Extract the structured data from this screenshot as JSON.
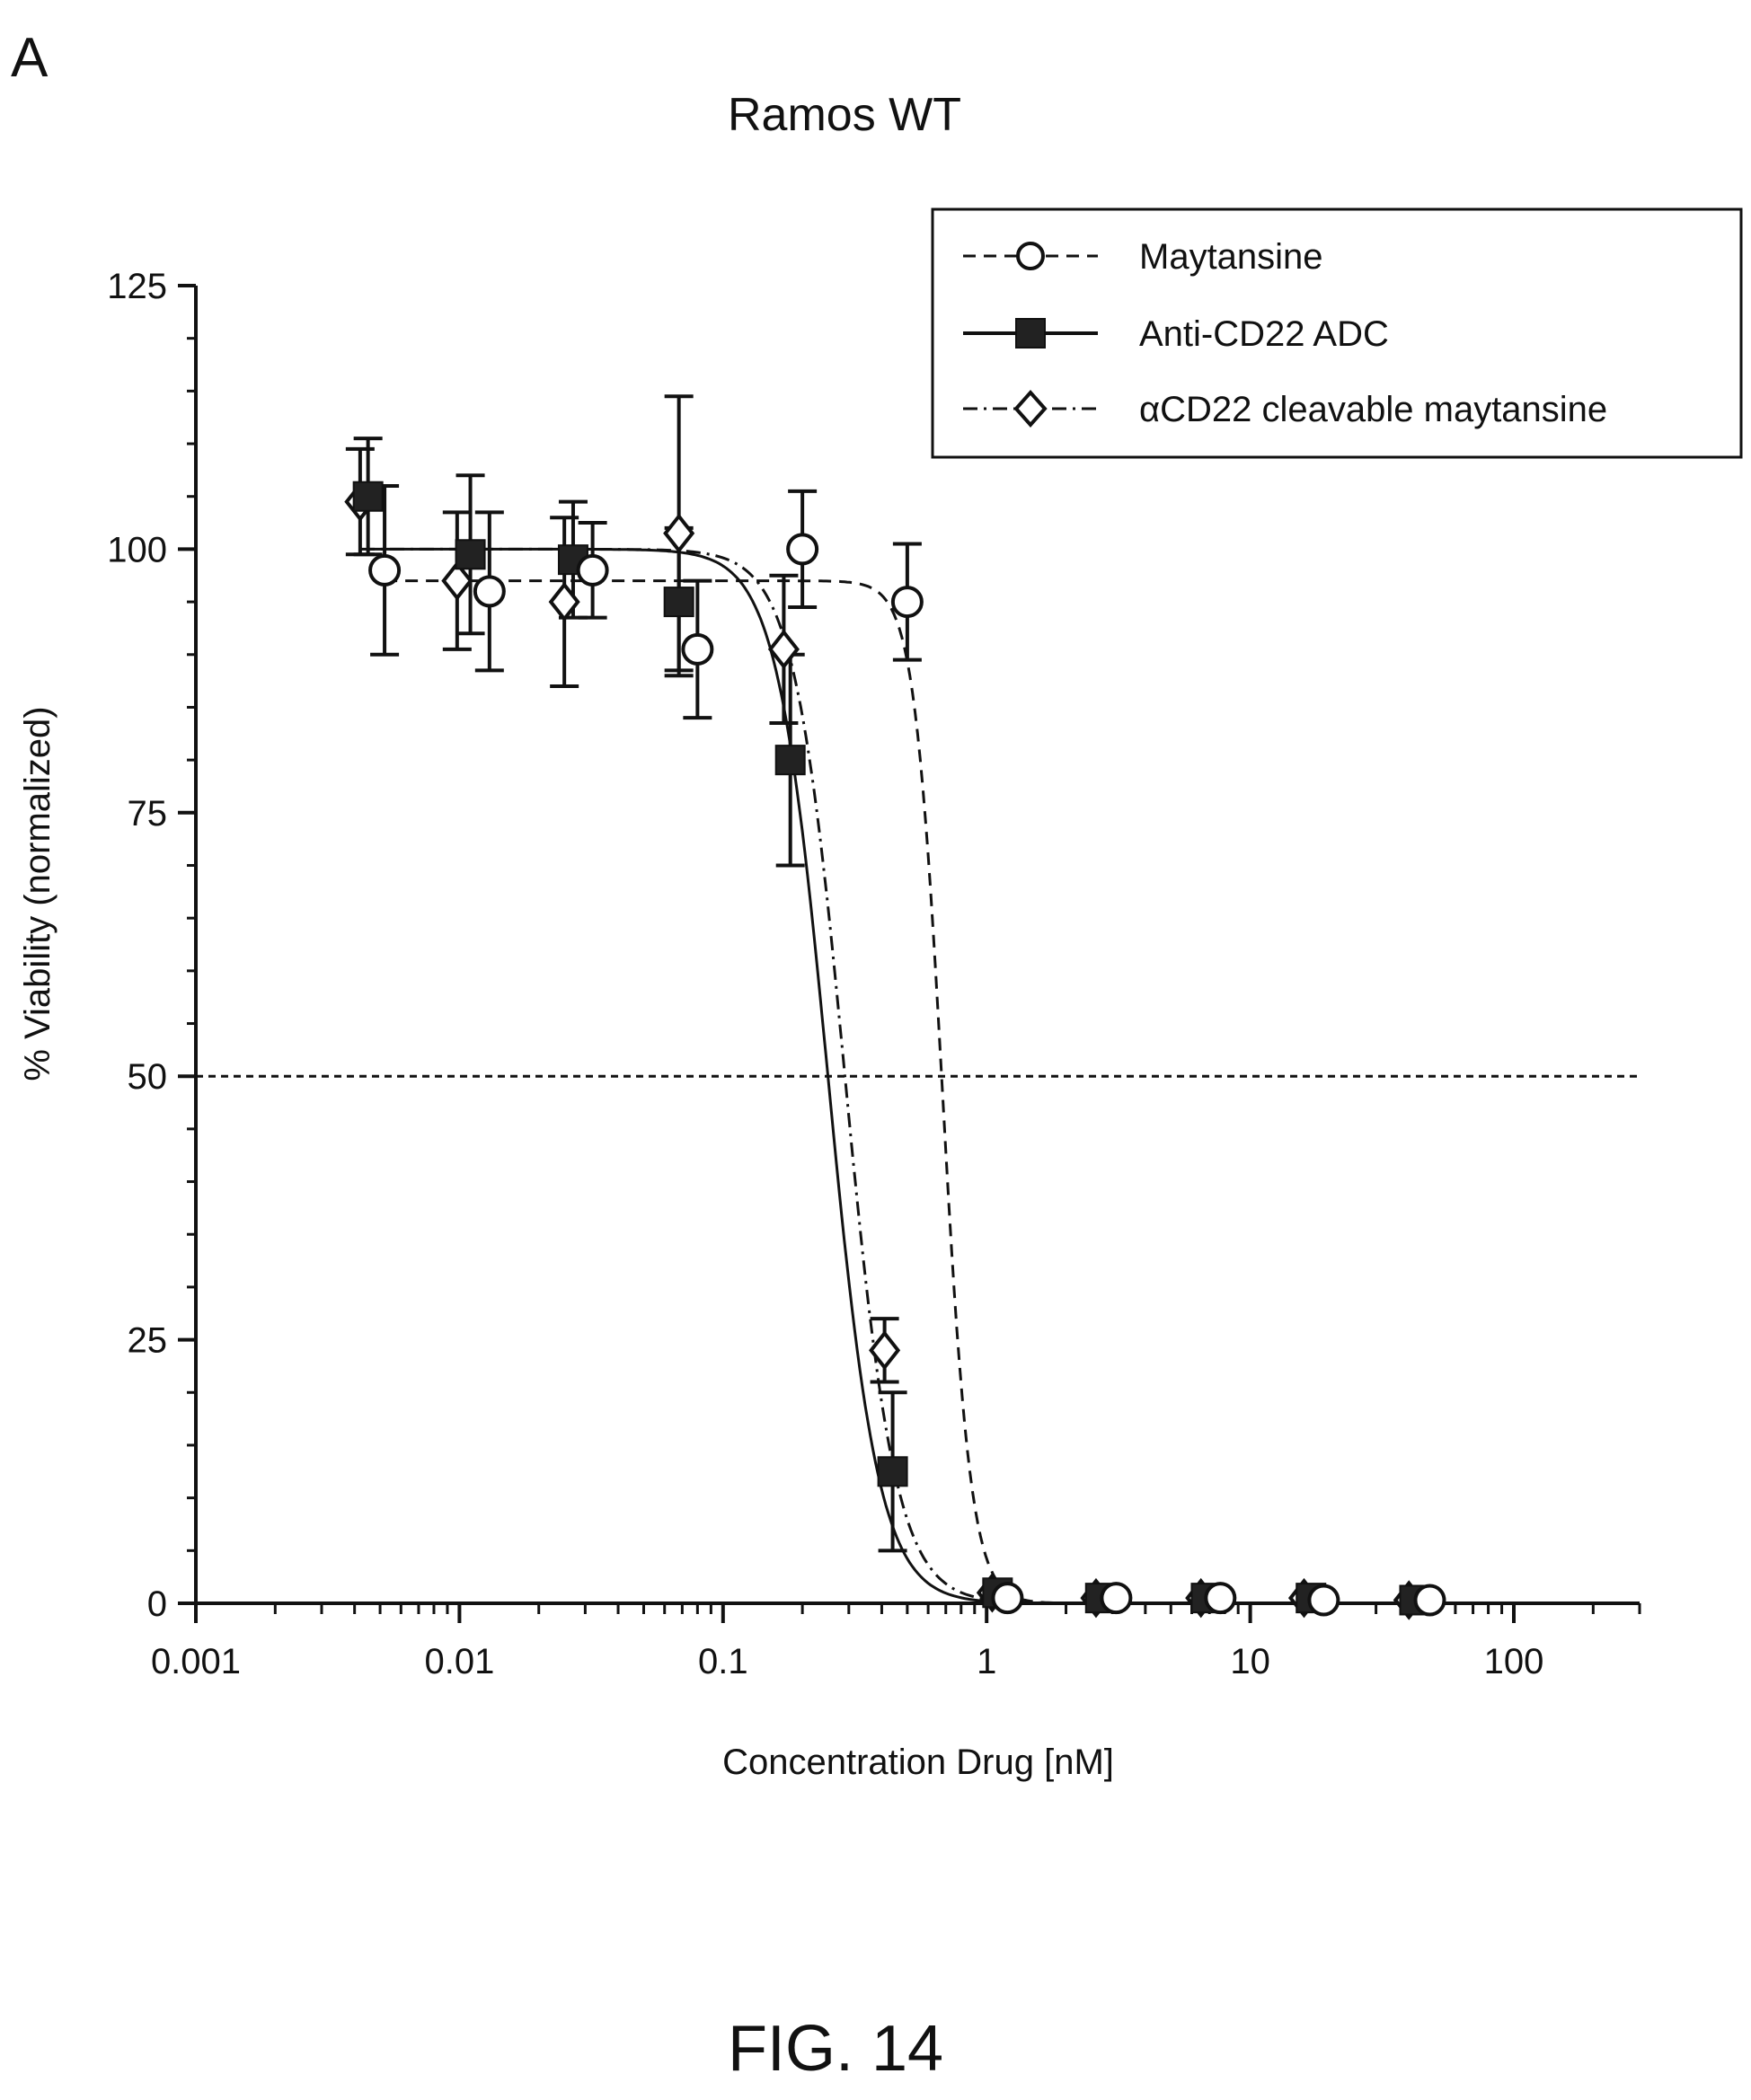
{
  "panel_label": "A",
  "figure_caption": "FIG. 14",
  "chart_data": {
    "type": "scatter",
    "title": "Ramos WT",
    "xlabel": "Concentration Drug [nM]",
    "ylabel": "% Viability (normalized)",
    "x_scale": "log",
    "xlim": [
      0.001,
      300
    ],
    "ylim": [
      0,
      125
    ],
    "x_ticks": [
      {
        "value": 0.001,
        "label": "0.001"
      },
      {
        "value": 0.01,
        "label": "0.01"
      },
      {
        "value": 0.1,
        "label": "0.1"
      },
      {
        "value": 1,
        "label": "1"
      },
      {
        "value": 10,
        "label": "10"
      },
      {
        "value": 100,
        "label": "100"
      }
    ],
    "y_ticks": [
      {
        "value": 0,
        "label": "0"
      },
      {
        "value": 25,
        "label": "25"
      },
      {
        "value": 50,
        "label": "50"
      },
      {
        "value": 75,
        "label": "75"
      },
      {
        "value": 100,
        "label": "100"
      },
      {
        "value": 125,
        "label": "125"
      }
    ],
    "reference_line_y": 50,
    "legend_position": "top-right",
    "grid": false,
    "series": [
      {
        "name": "Maytansine",
        "marker": "open-circle",
        "line_style": "dashed",
        "color": "#111111",
        "fit": {
          "top": 97,
          "bottom": 0,
          "ic50": 0.68,
          "hill": 8
        },
        "points": [
          {
            "x": 0.0052,
            "y": 98,
            "err": 8
          },
          {
            "x": 0.013,
            "y": 96,
            "err": 7.5
          },
          {
            "x": 0.032,
            "y": 98,
            "err": 4.5
          },
          {
            "x": 0.08,
            "y": 90.5,
            "err": 6.5
          },
          {
            "x": 0.2,
            "y": 100,
            "err": 5.5
          },
          {
            "x": 0.5,
            "y": 95,
            "err": 5.5
          },
          {
            "x": 1.2,
            "y": 0.5,
            "err": 0
          },
          {
            "x": 3.1,
            "y": 0.5,
            "err": 0
          },
          {
            "x": 7.7,
            "y": 0.5,
            "err": 0
          },
          {
            "x": 19,
            "y": 0.3,
            "err": 0
          },
          {
            "x": 48,
            "y": 0.3,
            "err": 0
          }
        ]
      },
      {
        "name": "Anti-CD22 ADC",
        "marker": "filled-square",
        "line_style": "solid",
        "color": "#111111",
        "fit": {
          "top": 100,
          "bottom": 0,
          "ic50": 0.25,
          "hill": 4.5
        },
        "points": [
          {
            "x": 0.0045,
            "y": 105,
            "err": 5.5
          },
          {
            "x": 0.011,
            "y": 99.5,
            "err": 7.5
          },
          {
            "x": 0.027,
            "y": 99,
            "err": 5.5
          },
          {
            "x": 0.068,
            "y": 95,
            "err": 7
          },
          {
            "x": 0.18,
            "y": 80,
            "err": 10
          },
          {
            "x": 0.44,
            "y": 12.5,
            "err": 7.5
          },
          {
            "x": 1.1,
            "y": 1,
            "err": 0
          },
          {
            "x": 2.7,
            "y": 0.5,
            "err": 0
          },
          {
            "x": 6.8,
            "y": 0.5,
            "err": 0
          },
          {
            "x": 17,
            "y": 0.5,
            "err": 0
          },
          {
            "x": 42,
            "y": 0.3,
            "err": 0
          }
        ]
      },
      {
        "name": "αCD22 cleavable maytansine",
        "marker": "open-diamond",
        "line_style": "dash-dot",
        "color": "#111111",
        "fit": {
          "top": 100,
          "bottom": 0,
          "ic50": 0.29,
          "hill": 4.5
        },
        "points": [
          {
            "x": 0.0042,
            "y": 104.5,
            "err": 5
          },
          {
            "x": 0.0098,
            "y": 97,
            "err": 6.5
          },
          {
            "x": 0.025,
            "y": 95,
            "err": 8
          },
          {
            "x": 0.068,
            "y": 101.5,
            "err": 13
          },
          {
            "x": 0.17,
            "y": 90.5,
            "err": 7
          },
          {
            "x": 0.41,
            "y": 24,
            "err": 3
          },
          {
            "x": 1.05,
            "y": 1,
            "err": 0
          },
          {
            "x": 2.6,
            "y": 0.5,
            "err": 0
          },
          {
            "x": 6.5,
            "y": 0.5,
            "err": 0
          },
          {
            "x": 16,
            "y": 0.5,
            "err": 0
          },
          {
            "x": 40,
            "y": 0.3,
            "err": 0
          }
        ]
      }
    ]
  }
}
